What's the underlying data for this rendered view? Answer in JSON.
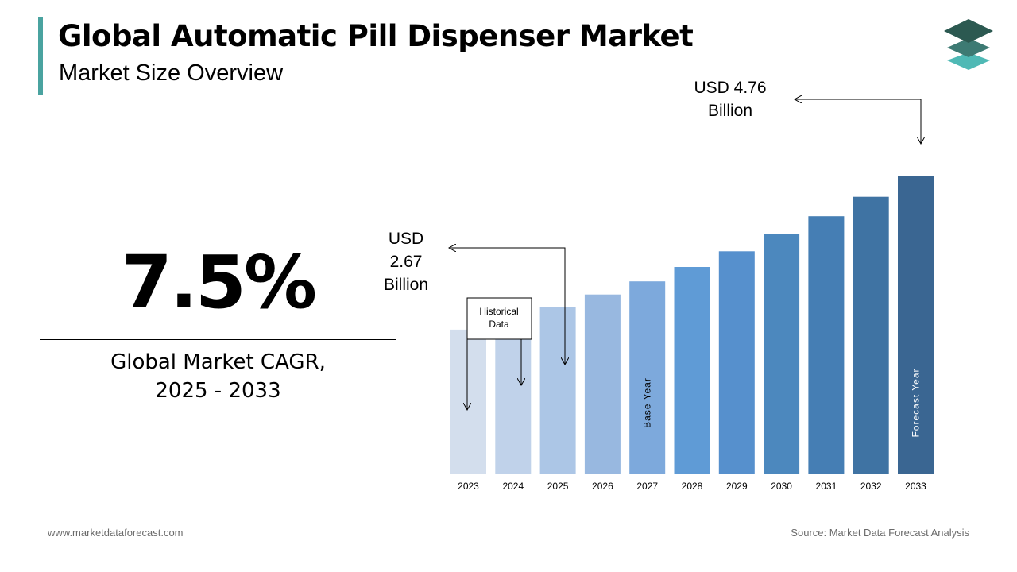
{
  "header": {
    "title": "Global Automatic Pill Dispenser Market",
    "subtitle": "Market Size Overview"
  },
  "cagr": {
    "value": "7.5%",
    "label_line1": "Global Market CAGR,",
    "label_line2": "2025 - 2033"
  },
  "annotations": {
    "start_value": [
      "USD",
      "2.67",
      "Billion"
    ],
    "end_value": [
      "USD 4.76",
      "Billion"
    ],
    "historical_box": [
      "Historical",
      "Data"
    ],
    "base_year": "Base Year",
    "forecast_year": "Forecast Year"
  },
  "chart_data": {
    "type": "bar",
    "categories": [
      "2023",
      "2024",
      "2025",
      "2026",
      "2027",
      "2028",
      "2029",
      "2030",
      "2031",
      "2032",
      "2033"
    ],
    "values": [
      2.31,
      2.48,
      2.67,
      2.87,
      3.08,
      3.31,
      3.56,
      3.83,
      4.12,
      4.43,
      4.76
    ],
    "colors": [
      "#d3deed",
      "#c0d2ea",
      "#acc6e6",
      "#98b8e0",
      "#7da9dc",
      "#5f9bd6",
      "#5690cd",
      "#4c88be",
      "#457eb4",
      "#3f73a3",
      "#3a6692"
    ],
    "label_color": "#ffffff",
    "ylim": [
      0,
      5.2
    ]
  },
  "footer": {
    "website": "www.marketdataforecast.com",
    "source": "Source: Market Data Forecast Analysis"
  }
}
